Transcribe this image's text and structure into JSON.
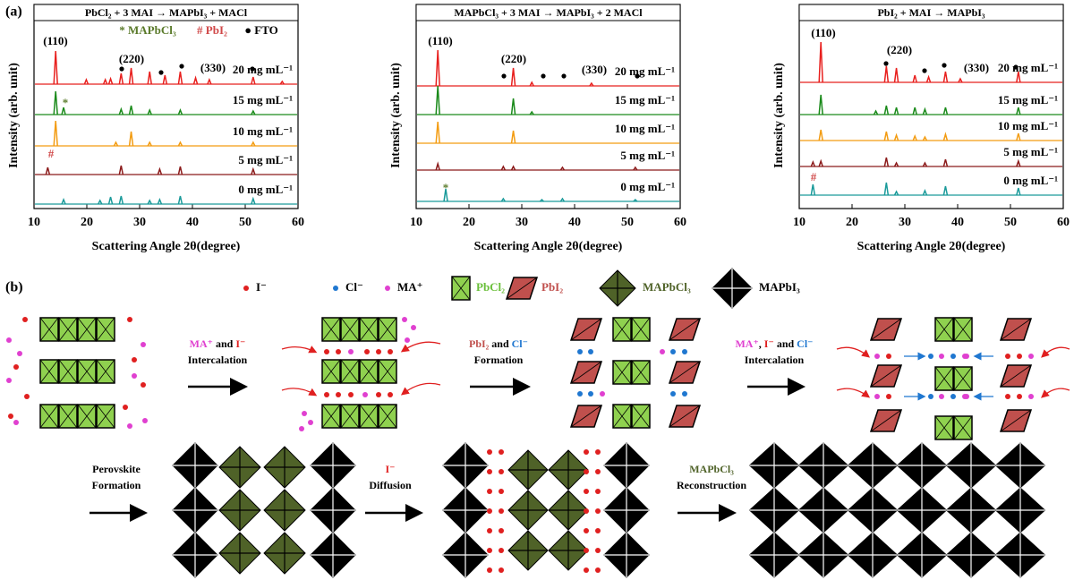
{
  "panels": [
    "(a)",
    "(b)"
  ],
  "chart_data": [
    {
      "type": "xrd",
      "title": "PbCl₂ + 3 MAI → MAPbI₃ + MACl",
      "xlabel": "Scattering Angle 2θ(degree)",
      "ylabel": "Intensity (arb. unit)",
      "xlim": [
        10,
        60
      ],
      "xticks": [
        10,
        20,
        30,
        40,
        50,
        60
      ],
      "annotations": [
        {
          "text": "(110)",
          "color": "#000"
        },
        {
          "text": "(220)",
          "color": "#000"
        },
        {
          "text": "(330)",
          "color": "#000"
        },
        {
          "text": "* MAPbCl₃",
          "color": "#5a7a2a"
        },
        {
          "text": "# PbI₂",
          "color": "#d04848"
        },
        {
          "text": "● FTO",
          "color": "#000"
        },
        {
          "text": "#",
          "color": "#d04848"
        },
        {
          "text": "*",
          "color": "#5a7a2a"
        }
      ],
      "series": [
        {
          "name": "20 mg mL⁻¹",
          "color": "#e8201e",
          "x": [
            14.1,
            19.9,
            23.5,
            24.5,
            26.5,
            28.4,
            31.9,
            34.8,
            37.7,
            40.6,
            43.2,
            51.5,
            57
          ],
          "values": [
            37,
            5,
            5,
            6,
            12,
            18,
            14,
            10,
            14,
            7,
            5,
            8,
            3
          ]
        },
        {
          "name": "15 mg mL⁻¹",
          "color": "#1a8a1a",
          "x": [
            14.1,
            15.6,
            26.5,
            28.4,
            31.9,
            37.7,
            51.5
          ],
          "values": [
            26,
            8,
            6,
            10,
            5,
            5,
            4
          ]
        },
        {
          "name": "10 mg mL⁻¹",
          "color": "#f39c12",
          "x": [
            14.1,
            25.5,
            28.4,
            31.9,
            37.7,
            51.5
          ],
          "values": [
            28,
            4,
            16,
            4,
            4,
            4
          ]
        },
        {
          "name": "5 mg mL⁻¹",
          "color": "#8b1a1a",
          "x": [
            12.6,
            26.5,
            33.8,
            37.7,
            51.5
          ],
          "values": [
            8,
            10,
            6,
            9,
            6
          ]
        },
        {
          "name": "0 mg mL⁻¹",
          "color": "#1a9a9a",
          "x": [
            15.6,
            22.5,
            24.5,
            26.5,
            31.9,
            33.8,
            37.7,
            51.5
          ],
          "values": [
            5,
            4,
            8,
            9,
            4,
            5,
            9,
            6
          ]
        }
      ]
    },
    {
      "type": "xrd",
      "title": "MAPbCl₃ + 3 MAI → MAPbI₃ + 2 MACl",
      "xlabel": "Scattering Angle 2θ(degree)",
      "ylabel": "Intensity (arb. unit)",
      "xlim": [
        10,
        60
      ],
      "xticks": [
        10,
        20,
        30,
        40,
        50,
        60
      ],
      "annotations": [
        {
          "text": "(110)",
          "color": "#000"
        },
        {
          "text": "(220)",
          "color": "#000"
        },
        {
          "text": "(330)",
          "color": "#000"
        },
        {
          "text": "*",
          "color": "#5a7a2a"
        }
      ],
      "series": [
        {
          "name": "20 mg mL⁻¹",
          "color": "#e8201e",
          "x": [
            14.1,
            28.4,
            31.9,
            43.2
          ],
          "values": [
            40,
            20,
            4,
            3
          ]
        },
        {
          "name": "15 mg mL⁻¹",
          "color": "#1a8a1a",
          "x": [
            14.1,
            28.4,
            31.9
          ],
          "values": [
            32,
            18,
            3
          ]
        },
        {
          "name": "10 mg mL⁻¹",
          "color": "#f39c12",
          "x": [
            14.1,
            28.4
          ],
          "values": [
            24,
            14
          ]
        },
        {
          "name": "5 mg mL⁻¹",
          "color": "#8b1a1a",
          "x": [
            14.1,
            26.5,
            28.4,
            37.7,
            51.5
          ],
          "values": [
            7,
            4,
            4,
            3,
            3
          ]
        },
        {
          "name": "0 mg mL⁻¹",
          "color": "#1a9a9a",
          "x": [
            15.6,
            26.5,
            33.8,
            37.7,
            51.5
          ],
          "values": [
            14,
            3,
            2,
            3,
            2
          ]
        }
      ]
    },
    {
      "type": "xrd",
      "title": "PbI₂ + MAI → MAPbI₃",
      "xlabel": "Scattering Angle 2θ(degree)",
      "ylabel": "Intensity (arb. unit)",
      "xlim": [
        10,
        60
      ],
      "xticks": [
        10,
        20,
        30,
        40,
        50,
        60
      ],
      "annotations": [
        {
          "text": "(110)",
          "color": "#000"
        },
        {
          "text": "(220)",
          "color": "#000"
        },
        {
          "text": "(330)",
          "color": "#000"
        },
        {
          "text": "#",
          "color": "#d04848"
        }
      ],
      "series": [
        {
          "name": "20 mg mL⁻¹",
          "color": "#e8201e",
          "x": [
            14.1,
            26.5,
            28.4,
            31.9,
            34.5,
            37.7,
            40.5,
            51.5
          ],
          "values": [
            45,
            18,
            16,
            8,
            6,
            12,
            4,
            12
          ]
        },
        {
          "name": "15 mg mL⁻¹",
          "color": "#1a8a1a",
          "x": [
            14.1,
            24.5,
            26.5,
            28.4,
            31.9,
            33.8,
            37.7,
            51.5
          ],
          "values": [
            22,
            4,
            10,
            8,
            8,
            6,
            8,
            8
          ]
        },
        {
          "name": "10 mg mL⁻¹",
          "color": "#f39c12",
          "x": [
            14.1,
            26.5,
            28.4,
            31.9,
            33.8,
            37.7,
            51.5
          ],
          "values": [
            12,
            10,
            6,
            5,
            4,
            7,
            8
          ]
        },
        {
          "name": "5 mg mL⁻¹",
          "color": "#8b1a1a",
          "x": [
            12.6,
            14.1,
            26.5,
            28.4,
            33.8,
            37.7,
            51.5
          ],
          "values": [
            5,
            6,
            10,
            4,
            4,
            8,
            6
          ]
        },
        {
          "name": "0 mg mL⁻¹",
          "color": "#1a9a9a",
          "x": [
            12.6,
            26.5,
            28.4,
            33.8,
            37.7,
            51.5
          ],
          "values": [
            12,
            14,
            4,
            5,
            10,
            8
          ]
        }
      ]
    }
  ],
  "schematic": {
    "legend": [
      {
        "text": "I⁻",
        "color": "#000"
      },
      {
        "text": "Cl⁻",
        "color": "#000"
      },
      {
        "text": "MA⁺",
        "color": "#000"
      },
      {
        "text": "PbCl₂",
        "color": "#6abf3a"
      },
      {
        "text": "PbI₂",
        "color": "#c0504d"
      },
      {
        "text": "MAPbCl₃",
        "color": "#4f6228"
      },
      {
        "text": "MAPbI₃",
        "color": "#000"
      }
    ],
    "steps": [
      {
        "lines": [
          [
            {
              "text": "MA⁺",
              "color": "#e040d0"
            },
            {
              "text": " and ",
              "color": "#000"
            },
            {
              "text": "I⁻",
              "color": "#e02020"
            }
          ],
          [
            {
              "text": "Intercalation",
              "color": "#000"
            }
          ]
        ]
      },
      {
        "lines": [
          [
            {
              "text": "PbI₂",
              "color": "#c0504d"
            },
            {
              "text": " and ",
              "color": "#000"
            },
            {
              "text": "Cl⁻",
              "color": "#1f77d0"
            }
          ],
          [
            {
              "text": "Formation",
              "color": "#000"
            }
          ]
        ]
      },
      {
        "lines": [
          [
            {
              "text": "MA⁺",
              "color": "#e040d0"
            },
            {
              "text": ", ",
              "color": "#000"
            },
            {
              "text": "I⁻",
              "color": "#e02020"
            },
            {
              "text": " and ",
              "color": "#000"
            },
            {
              "text": "Cl⁻",
              "color": "#1f77d0"
            }
          ],
          [
            {
              "text": "Intercalation",
              "color": "#000"
            }
          ]
        ]
      },
      {
        "lines": [
          [
            {
              "text": "Perovskite",
              "color": "#000"
            }
          ],
          [
            {
              "text": "Formation",
              "color": "#000"
            }
          ]
        ]
      },
      {
        "lines": [
          [
            {
              "text": "I⁻",
              "color": "#e02020"
            }
          ],
          [
            {
              "text": "Diffusion",
              "color": "#000"
            }
          ]
        ]
      },
      {
        "lines": [
          [
            {
              "text": "MAPbCl₃",
              "color": "#4f6228"
            }
          ],
          [
            {
              "text": "Reconstruction",
              "color": "#000"
            }
          ]
        ]
      }
    ]
  }
}
